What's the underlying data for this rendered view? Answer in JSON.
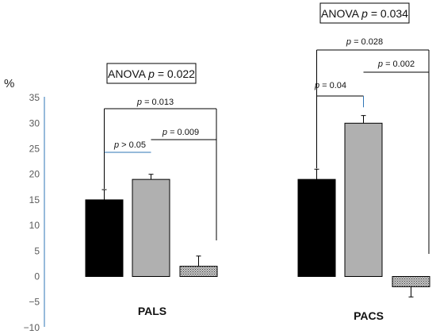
{
  "chart_data": {
    "type": "bar",
    "ylabel": "%",
    "ylim": [
      -10,
      35
    ],
    "yticks": [
      35,
      30,
      25,
      20,
      15,
      10,
      5,
      0,
      -5,
      -10
    ],
    "grid": false,
    "legend": "none",
    "colors": {
      "axis": "#2e75b6",
      "bar_1": "#000000",
      "bar_2": "#b0b0b0",
      "bar_3": "#a0a0a0",
      "bracket_black": "#000000",
      "bracket_blue": "#2e75b6"
    },
    "groups": [
      {
        "name": "PALS",
        "values": [
          15,
          19,
          2
        ],
        "errors": [
          2,
          1,
          2
        ],
        "anova": {
          "prefix": "ANOVA ",
          "p": "p",
          "rest": " = 0.022"
        },
        "comparisons": [
          {
            "pair": [
              1,
              3
            ],
            "label": "p = 0.013"
          },
          {
            "pair": [
              1,
              2
            ],
            "label": "p > 0.05"
          },
          {
            "pair": [
              2,
              3
            ],
            "label": "p = 0.009"
          }
        ]
      },
      {
        "name": "PACS",
        "values": [
          19,
          30,
          -2
        ],
        "errors": [
          2,
          1.5,
          2
        ],
        "anova": {
          "prefix": "ANOVA ",
          "p": "p",
          "rest": " = 0.034"
        },
        "comparisons": [
          {
            "pair": [
              1,
              3
            ],
            "label": "p = 0.028"
          },
          {
            "pair": [
              2,
              3
            ],
            "label": "p = 0.002"
          },
          {
            "pair": [
              1,
              2
            ],
            "label": "p = 0.04"
          }
        ]
      }
    ]
  }
}
